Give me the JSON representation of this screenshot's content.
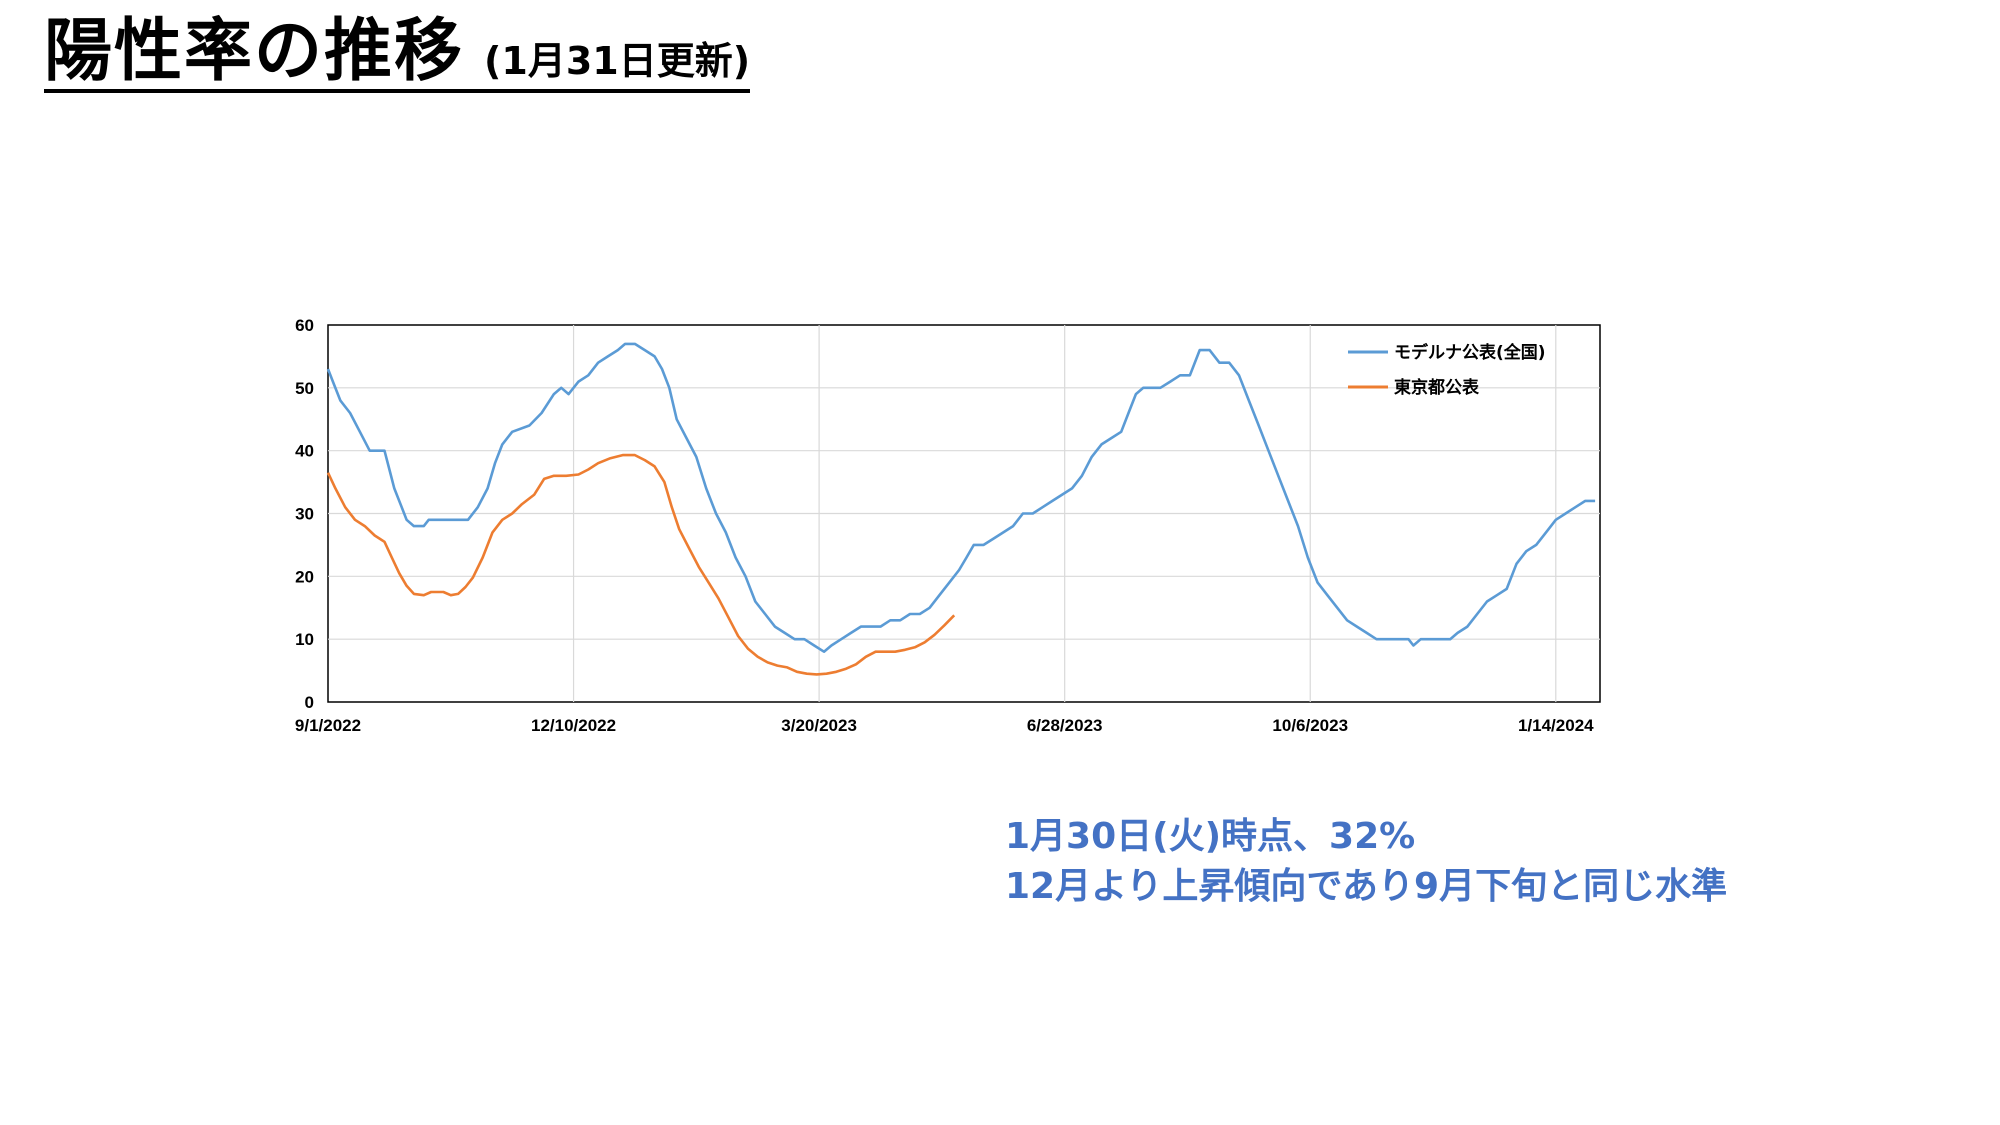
{
  "title": {
    "main": "陽性率の推移",
    "sub": "(1月31日更新)"
  },
  "note": {
    "line1": "1月30日(火)時点、32%",
    "line2": "12月より上昇傾向であり9月下旬と同じ水準"
  },
  "colors": {
    "series1": "#5B9BD5",
    "series2": "#ED7D31",
    "note": "#4472C4"
  },
  "chart_data": {
    "type": "line",
    "x_tick_labels": [
      "9/1/2022",
      "12/10/2022",
      "3/20/2023",
      "6/28/2023",
      "10/6/2023",
      "1/14/2024"
    ],
    "xlim": [
      "2022-09-01",
      "2024-02-01"
    ],
    "ylim": [
      0,
      60
    ],
    "y_ticks": [
      0,
      10,
      20,
      30,
      40,
      50,
      60
    ],
    "grid": true,
    "legend_position": "top-right",
    "series": [
      {
        "name": "モデルナ公表(全国)",
        "color": "#5B9BD5",
        "points": [
          [
            "2022-09-01",
            53
          ],
          [
            "2022-09-03",
            51
          ],
          [
            "2022-09-06",
            48
          ],
          [
            "2022-09-10",
            46
          ],
          [
            "2022-09-14",
            43
          ],
          [
            "2022-09-18",
            40
          ],
          [
            "2022-09-24",
            40
          ],
          [
            "2022-09-26",
            37
          ],
          [
            "2022-09-28",
            34
          ],
          [
            "2022-10-01",
            31
          ],
          [
            "2022-10-03",
            29
          ],
          [
            "2022-10-06",
            28
          ],
          [
            "2022-10-10",
            28
          ],
          [
            "2022-10-12",
            29
          ],
          [
            "2022-10-28",
            29
          ],
          [
            "2022-11-01",
            31
          ],
          [
            "2022-11-05",
            34
          ],
          [
            "2022-11-08",
            38
          ],
          [
            "2022-11-11",
            41
          ],
          [
            "2022-11-15",
            43
          ],
          [
            "2022-11-22",
            44
          ],
          [
            "2022-11-27",
            46
          ],
          [
            "2022-12-02",
            49
          ],
          [
            "2022-12-05",
            50
          ],
          [
            "2022-12-08",
            49
          ],
          [
            "2022-12-12",
            51
          ],
          [
            "2022-12-16",
            52
          ],
          [
            "2022-12-20",
            54
          ],
          [
            "2022-12-24",
            55
          ],
          [
            "2022-12-28",
            56
          ],
          [
            "2022-12-31",
            57
          ],
          [
            "2023-01-04",
            57
          ],
          [
            "2023-01-08",
            56
          ],
          [
            "2023-01-12",
            55
          ],
          [
            "2023-01-15",
            53
          ],
          [
            "2023-01-18",
            50
          ],
          [
            "2023-01-21",
            45
          ],
          [
            "2023-01-25",
            42
          ],
          [
            "2023-01-29",
            39
          ],
          [
            "2023-02-02",
            34
          ],
          [
            "2023-02-06",
            30
          ],
          [
            "2023-02-10",
            27
          ],
          [
            "2023-02-14",
            23
          ],
          [
            "2023-02-18",
            20
          ],
          [
            "2023-02-22",
            16
          ],
          [
            "2023-02-26",
            14
          ],
          [
            "2023-03-02",
            12
          ],
          [
            "2023-03-06",
            11
          ],
          [
            "2023-03-10",
            10
          ],
          [
            "2023-03-14",
            10
          ],
          [
            "2023-03-18",
            9
          ],
          [
            "2023-03-22",
            8
          ],
          [
            "2023-03-25",
            9
          ],
          [
            "2023-03-29",
            10
          ],
          [
            "2023-04-02",
            11
          ],
          [
            "2023-04-06",
            12
          ],
          [
            "2023-04-10",
            12
          ],
          [
            "2023-04-14",
            12
          ],
          [
            "2023-04-18",
            13
          ],
          [
            "2023-04-22",
            13
          ],
          [
            "2023-04-26",
            14
          ],
          [
            "2023-04-30",
            14
          ],
          [
            "2023-05-04",
            15
          ],
          [
            "2023-05-08",
            17
          ],
          [
            "2023-05-12",
            19
          ],
          [
            "2023-05-16",
            21
          ],
          [
            "2023-05-19",
            23
          ],
          [
            "2023-05-22",
            25
          ],
          [
            "2023-05-26",
            25
          ],
          [
            "2023-05-30",
            26
          ],
          [
            "2023-06-03",
            27
          ],
          [
            "2023-06-07",
            28
          ],
          [
            "2023-06-11",
            30
          ],
          [
            "2023-06-15",
            30
          ],
          [
            "2023-06-19",
            31
          ],
          [
            "2023-06-23",
            32
          ],
          [
            "2023-06-27",
            33
          ],
          [
            "2023-07-01",
            34
          ],
          [
            "2023-07-05",
            36
          ],
          [
            "2023-07-09",
            39
          ],
          [
            "2023-07-13",
            41
          ],
          [
            "2023-07-17",
            42
          ],
          [
            "2023-07-21",
            43
          ],
          [
            "2023-07-24",
            46
          ],
          [
            "2023-07-27",
            49
          ],
          [
            "2023-07-30",
            50
          ],
          [
            "2023-08-06",
            50
          ],
          [
            "2023-08-10",
            51
          ],
          [
            "2023-08-14",
            52
          ],
          [
            "2023-08-18",
            52
          ],
          [
            "2023-08-22",
            56
          ],
          [
            "2023-08-26",
            56
          ],
          [
            "2023-08-30",
            54
          ],
          [
            "2023-09-03",
            54
          ],
          [
            "2023-09-07",
            52
          ],
          [
            "2023-09-11",
            48
          ],
          [
            "2023-09-15",
            44
          ],
          [
            "2023-09-19",
            40
          ],
          [
            "2023-09-23",
            36
          ],
          [
            "2023-09-27",
            32
          ],
          [
            "2023-10-01",
            28
          ],
          [
            "2023-10-05",
            23
          ],
          [
            "2023-10-09",
            19
          ],
          [
            "2023-10-13",
            17
          ],
          [
            "2023-10-17",
            15
          ],
          [
            "2023-10-21",
            13
          ],
          [
            "2023-10-25",
            12
          ],
          [
            "2023-10-29",
            11
          ],
          [
            "2023-11-02",
            10
          ],
          [
            "2023-11-15",
            10
          ],
          [
            "2023-11-17",
            9
          ],
          [
            "2023-11-20",
            10
          ],
          [
            "2023-12-02",
            10
          ],
          [
            "2023-12-05",
            11
          ],
          [
            "2023-12-09",
            12
          ],
          [
            "2023-12-13",
            14
          ],
          [
            "2023-12-17",
            16
          ],
          [
            "2023-12-21",
            17
          ],
          [
            "2023-12-25",
            18
          ],
          [
            "2023-12-29",
            22
          ],
          [
            "2024-01-02",
            24
          ],
          [
            "2024-01-06",
            25
          ],
          [
            "2024-01-10",
            27
          ],
          [
            "2024-01-14",
            29
          ],
          [
            "2024-01-18",
            30
          ],
          [
            "2024-01-22",
            31
          ],
          [
            "2024-01-26",
            32
          ],
          [
            "2024-01-30",
            32
          ]
        ]
      },
      {
        "name": "東京都公表",
        "color": "#ED7D31",
        "points": [
          [
            "2022-09-01",
            36.5
          ],
          [
            "2022-09-04",
            34
          ],
          [
            "2022-09-08",
            31
          ],
          [
            "2022-09-12",
            29
          ],
          [
            "2022-09-16",
            28
          ],
          [
            "2022-09-20",
            26.5
          ],
          [
            "2022-09-24",
            25.5
          ],
          [
            "2022-09-27",
            23
          ],
          [
            "2022-09-30",
            20.5
          ],
          [
            "2022-10-03",
            18.5
          ],
          [
            "2022-10-06",
            17.2
          ],
          [
            "2022-10-10",
            17
          ],
          [
            "2022-10-13",
            17.5
          ],
          [
            "2022-10-18",
            17.5
          ],
          [
            "2022-10-21",
            17
          ],
          [
            "2022-10-24",
            17.2
          ],
          [
            "2022-10-27",
            18.3
          ],
          [
            "2022-10-30",
            19.8
          ],
          [
            "2022-11-03",
            23
          ],
          [
            "2022-11-07",
            27
          ],
          [
            "2022-11-11",
            29
          ],
          [
            "2022-11-15",
            30
          ],
          [
            "2022-11-19",
            31.5
          ],
          [
            "2022-11-24",
            33
          ],
          [
            "2022-11-28",
            35.5
          ],
          [
            "2022-12-02",
            36
          ],
          [
            "2022-12-07",
            36
          ],
          [
            "2022-12-12",
            36.2
          ],
          [
            "2022-12-16",
            37
          ],
          [
            "2022-12-20",
            38
          ],
          [
            "2022-12-25",
            38.8
          ],
          [
            "2022-12-30",
            39.3
          ],
          [
            "2023-01-04",
            39.3
          ],
          [
            "2023-01-08",
            38.5
          ],
          [
            "2023-01-12",
            37.5
          ],
          [
            "2023-01-16",
            35
          ],
          [
            "2023-01-19",
            31
          ],
          [
            "2023-01-22",
            27.5
          ],
          [
            "2023-01-26",
            24.5
          ],
          [
            "2023-01-30",
            21.5
          ],
          [
            "2023-02-03",
            19
          ],
          [
            "2023-02-07",
            16.5
          ],
          [
            "2023-02-11",
            13.5
          ],
          [
            "2023-02-15",
            10.5
          ],
          [
            "2023-02-19",
            8.5
          ],
          [
            "2023-02-23",
            7.2
          ],
          [
            "2023-02-27",
            6.3
          ],
          [
            "2023-03-03",
            5.8
          ],
          [
            "2023-03-07",
            5.5
          ],
          [
            "2023-03-11",
            4.8
          ],
          [
            "2023-03-15",
            4.5
          ],
          [
            "2023-03-19",
            4.4
          ],
          [
            "2023-03-23",
            4.5
          ],
          [
            "2023-03-27",
            4.8
          ],
          [
            "2023-03-31",
            5.3
          ],
          [
            "2023-04-04",
            6
          ],
          [
            "2023-04-08",
            7.2
          ],
          [
            "2023-04-12",
            8
          ],
          [
            "2023-04-16",
            8
          ],
          [
            "2023-04-20",
            8
          ],
          [
            "2023-04-24",
            8.3
          ],
          [
            "2023-04-28",
            8.7
          ],
          [
            "2023-05-02",
            9.5
          ],
          [
            "2023-05-06",
            10.7
          ],
          [
            "2023-05-10",
            12.2
          ],
          [
            "2023-05-14",
            13.8
          ]
        ]
      }
    ]
  }
}
